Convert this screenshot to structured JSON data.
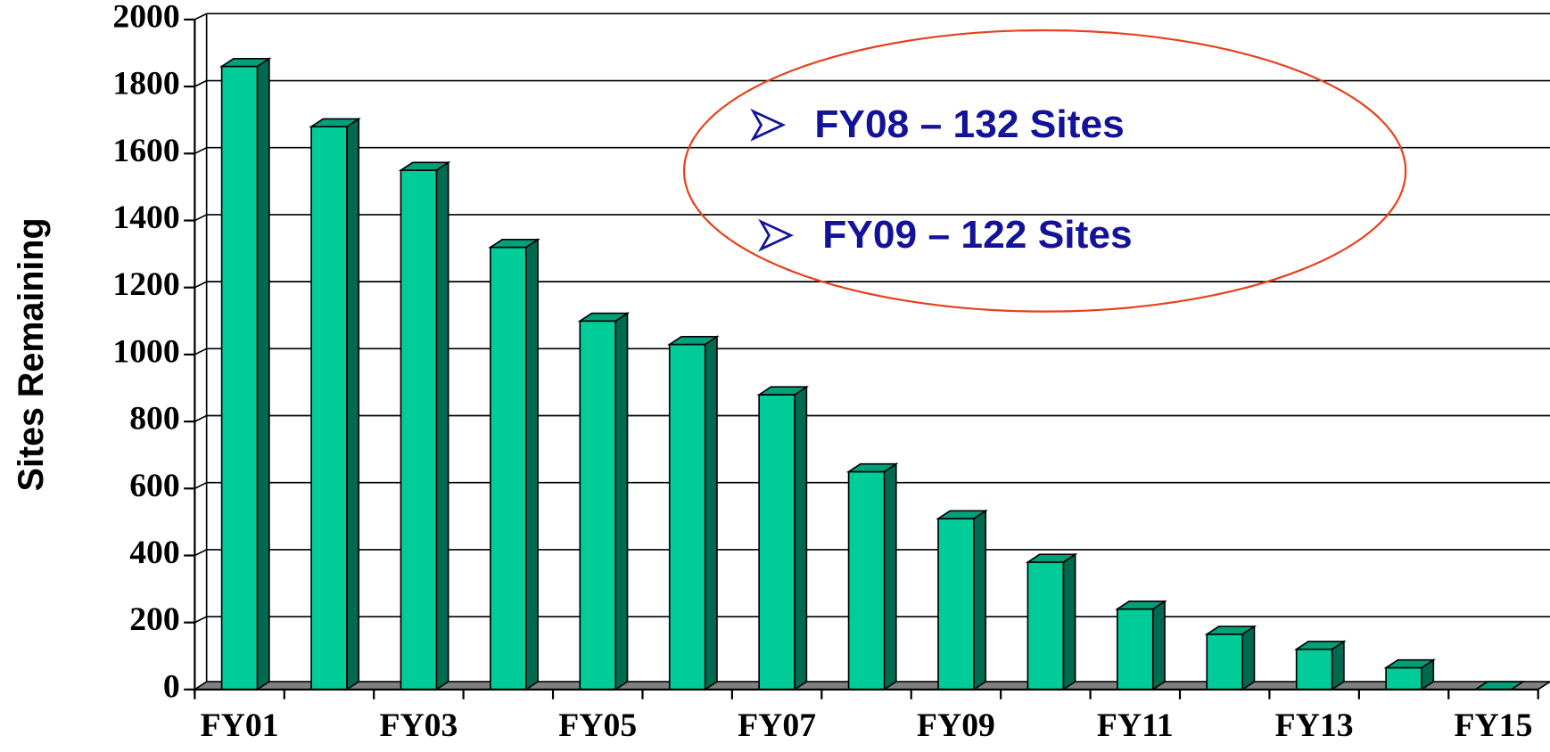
{
  "chart_data": {
    "type": "bar3d",
    "y_label": "Sites Remaining",
    "annotations": [
      "FY08 – 132 Sites",
      "FY09 – 122 Sites"
    ],
    "categories": [
      "FY01",
      null,
      "FY03",
      null,
      "FY05",
      null,
      "FY07",
      null,
      "FY09",
      null,
      "FY11",
      null,
      "FY13",
      null,
      "FY15"
    ],
    "values": [
      1860,
      1680,
      1550,
      1320,
      1100,
      1030,
      880,
      650,
      510,
      380,
      240,
      165,
      120,
      65,
      0
    ],
    "color": "#00cc99",
    "ylim": [
      0,
      2000
    ],
    "yticks": [
      0,
      200,
      400,
      600,
      800,
      1000,
      1200,
      1400,
      1600,
      1800,
      2000
    ],
    "grid": true
  }
}
